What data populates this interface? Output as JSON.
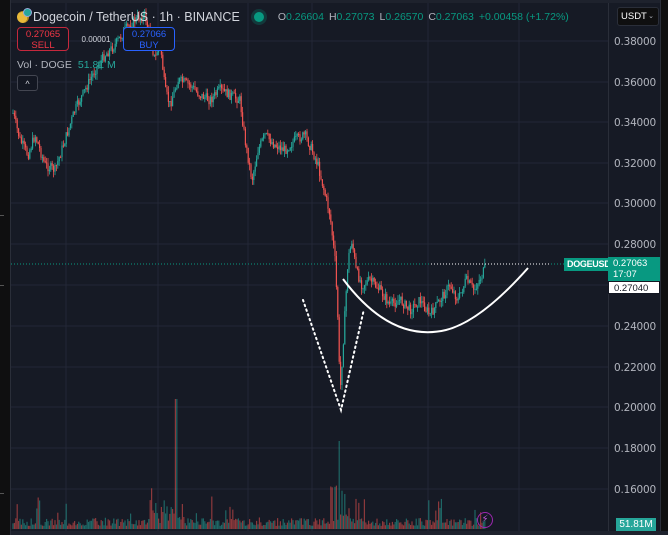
{
  "header": {
    "symbol_title": "Dogecoin / TetherUS · 1h · BINANCE",
    "status_color": "#089981",
    "ohlc": {
      "o_key": "O",
      "o_val": "0.26604",
      "h_key": "H",
      "h_val": "0.27073",
      "l_key": "L",
      "l_val": "0.26570",
      "c_key": "C",
      "c_val": "0.27063",
      "change": "+0.00458 (+1.72%)"
    }
  },
  "trade": {
    "sell_price": "0.27065",
    "sell_label": "SELL",
    "spread": "0.00001",
    "buy_price": "0.27066",
    "buy_label": "BUY"
  },
  "volume_legend": {
    "label": "Vol · DOGE",
    "value": "51.81 M"
  },
  "collapse_icon": "^",
  "currency": {
    "selected": "USDT",
    "chevron": "⌄"
  },
  "price_axis": {
    "labels": [
      "0.38000",
      "0.36000",
      "0.34000",
      "0.32000",
      "0.30000",
      "0.28000",
      "0.24000",
      "0.22000",
      "0.20000",
      "0.18000",
      "0.16000"
    ]
  },
  "last_price": {
    "symbol_tag": "DOGEUSDT",
    "price": "0.27063",
    "countdown": "17:07",
    "bid": "0.27040"
  },
  "volume_axis_value": "51.81M",
  "bolt_icon": "⚡",
  "colors": {
    "up": "#26a69a",
    "down": "#ef5350",
    "background": "#161a25",
    "grid": "#232736",
    "drawing": "#ffffff"
  }
}
